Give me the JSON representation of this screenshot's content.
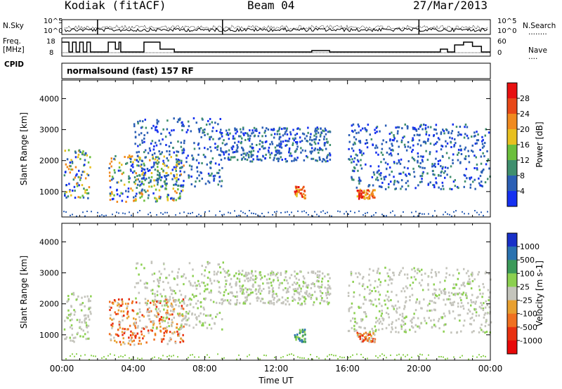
{
  "header": {
    "station": "Kodiak (fitACF)",
    "beam": "Beam 04",
    "date": "27/Mar/2013"
  },
  "side_labels": {
    "nsky": "N.Sky",
    "freq_line1": "Freq.",
    "freq_line2": "[MHz]",
    "cpid": "CPID",
    "nsearch": "N.Search",
    "nave": "Nave",
    "dotted_marker": "........",
    "dotted_marker_short": "...."
  },
  "top_panels": {
    "noise_ticks_left": [
      "10^5",
      "10^0"
    ],
    "noise_ticks_right": [
      "10^5",
      "10^0"
    ],
    "freq_ticks": [
      "18",
      "8"
    ],
    "nave_ticks": [
      "60",
      "0"
    ],
    "cpid_text": "normalsound (fast) 157 RF"
  },
  "chart_data": [
    {
      "type": "heatmap",
      "title": "",
      "xlabel": "Time UT",
      "ylabel": "Slant Range [km]",
      "xlim_hours": [
        0,
        24
      ],
      "x_tick_labels": [
        "00:00",
        "04:00",
        "08:00",
        "12:00",
        "16:00",
        "20:00",
        "00:00"
      ],
      "ylim": [
        180,
        4600
      ],
      "y_ticks": [
        "1000",
        "2000",
        "3000",
        "4000"
      ],
      "colorbar": {
        "label": "Power [dB]",
        "ticks": [
          "4",
          "8",
          "12",
          "16",
          "20",
          "24",
          "28"
        ],
        "colors": [
          "#1530f0",
          "#2b5fb5",
          "#3f8f6e",
          "#6bbf3c",
          "#e8c020",
          "#f08a20",
          "#e84818",
          "#e81010"
        ]
      },
      "echo_regions": [
        {
          "t_start": 0.1,
          "t_end": 1.6,
          "r_min": 800,
          "r_max": 2400,
          "value": "mixed"
        },
        {
          "t_start": 2.6,
          "t_end": 6.8,
          "r_min": 700,
          "r_max": 2200,
          "value": "mixed"
        },
        {
          "t_start": 4.0,
          "t_end": 9.0,
          "r_min": 1200,
          "r_max": 3400,
          "value": "low"
        },
        {
          "t_start": 9.0,
          "t_end": 15.0,
          "r_min": 2000,
          "r_max": 3100,
          "value": "low"
        },
        {
          "t_start": 13.0,
          "t_end": 13.6,
          "r_min": 800,
          "r_max": 1200,
          "value": "high"
        },
        {
          "t_start": 16.5,
          "t_end": 17.5,
          "r_min": 800,
          "r_max": 1100,
          "value": "high"
        },
        {
          "t_start": 16.0,
          "t_end": 24.0,
          "r_min": 1100,
          "r_max": 3200,
          "value": "low"
        }
      ]
    },
    {
      "type": "heatmap",
      "title": "",
      "xlabel": "Time UT",
      "ylabel": "Slant Range [km]",
      "xlim_hours": [
        0,
        24
      ],
      "x_tick_labels": [
        "00:00",
        "04:00",
        "08:00",
        "12:00",
        "16:00",
        "20:00",
        "00:00"
      ],
      "ylim": [
        180,
        4600
      ],
      "y_ticks": [
        "1000",
        "2000",
        "3000",
        "4000"
      ],
      "colorbar": {
        "label": "Velocity [m s-1]",
        "ticks": [
          "1000",
          "500",
          "100",
          "25",
          "-25",
          "-100",
          "-500",
          "-1000"
        ],
        "colors": [
          "#1830c8",
          "#2a72b0",
          "#3c9a5a",
          "#8cd050",
          "#c4c4bc",
          "#e8a030",
          "#f07020",
          "#e83010",
          "#e80808"
        ]
      },
      "echo_regions": [
        {
          "t_start": 0.1,
          "t_end": 1.6,
          "r_min": 800,
          "r_max": 2400,
          "value": "ground"
        },
        {
          "t_start": 2.6,
          "t_end": 6.8,
          "r_min": 700,
          "r_max": 2200,
          "value": "negative"
        },
        {
          "t_start": 4.0,
          "t_end": 9.0,
          "r_min": 1200,
          "r_max": 3400,
          "value": "ground"
        },
        {
          "t_start": 9.0,
          "t_end": 15.0,
          "r_min": 2000,
          "r_max": 3100,
          "value": "ground"
        },
        {
          "t_start": 13.0,
          "t_end": 13.6,
          "r_min": 800,
          "r_max": 1200,
          "value": "positive"
        },
        {
          "t_start": 16.5,
          "t_end": 17.5,
          "r_min": 800,
          "r_max": 1100,
          "value": "negative"
        },
        {
          "t_start": 16.0,
          "t_end": 24.0,
          "r_min": 1100,
          "r_max": 3200,
          "value": "ground"
        }
      ]
    }
  ]
}
